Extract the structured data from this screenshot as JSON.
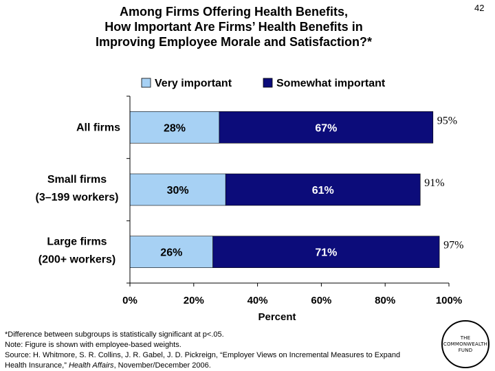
{
  "slide": {
    "title_lines": [
      "Among Firms Offering Health Benefits,",
      "How Important Are Firms’ Health Benefits in",
      "Improving Employee Morale and Satisfaction?*"
    ],
    "page_number": "42"
  },
  "colors": {
    "very_important": "#a7d1f4",
    "somewhat_important": "#0c0c7a"
  },
  "chart_data": {
    "type": "bar",
    "orientation": "horizontal",
    "stacked": true,
    "categories": [
      [
        "All firms"
      ],
      [
        "Small firms",
        "(3–199 workers)"
      ],
      [
        "Large firms",
        "(200+ workers)"
      ]
    ],
    "series": [
      {
        "name": "Very important",
        "values": [
          28,
          30,
          26
        ],
        "labels": [
          "28%",
          "30%",
          "26%"
        ]
      },
      {
        "name": "Somewhat important",
        "values": [
          67,
          61,
          71
        ],
        "labels": [
          "67%",
          "61%",
          "71%"
        ]
      }
    ],
    "totals": [
      95,
      91,
      97
    ],
    "total_labels": [
      "95%",
      "91%",
      "97%"
    ],
    "xlim": [
      0,
      100
    ],
    "xticks": [
      "0%",
      "20%",
      "40%",
      "60%",
      "80%",
      "100%"
    ],
    "xlabel": "Percent",
    "legend_position": "top",
    "grid": false
  },
  "footnotes": {
    "line1": "*Difference between subgroups is statistically significant at p<.05.",
    "line2": "Note: Figure is shown with employee-based weights.",
    "line3": "Source: H. Whitmore, S. R. Collins, J. R. Gabel, J. D. Pickreign, “Employer Views on Incremental Measures to Expand",
    "line4_prefix": "Health Insurance,” ",
    "line4_journal": "Health Affairs",
    "line4_suffix": ", November/December 2006."
  },
  "logo": {
    "line1": "THE",
    "line2": "COMMONWEALTH",
    "line3": "FUND"
  }
}
